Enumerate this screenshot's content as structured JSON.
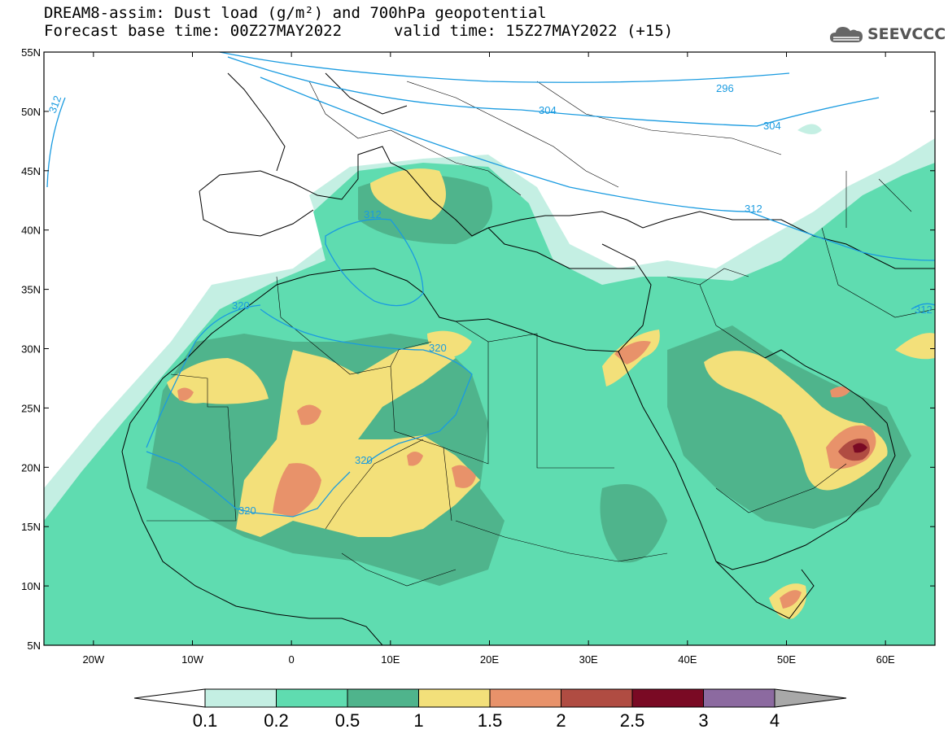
{
  "header": {
    "title_line1": "DREAM8-assim: Dust load (g/m²) and 700hPa geopotential",
    "title_line2": "Forecast base time: 00Z27MAY2022",
    "valid_time": "valid time: 15Z27MAY2022 (+15)"
  },
  "logo": {
    "text": "SEEVCCC",
    "icon": "cloud-logo-icon"
  },
  "map": {
    "lat_labels": [
      "55N",
      "50N",
      "45N",
      "40N",
      "35N",
      "30N",
      "25N",
      "20N",
      "15N",
      "10N",
      "5N"
    ],
    "lon_labels": [
      "20W",
      "10W",
      "0",
      "10E",
      "20E",
      "30E",
      "40E",
      "50E",
      "60E"
    ],
    "lat_range": [
      5,
      55
    ],
    "lon_range": [
      -25,
      65
    ],
    "colors": {
      "ocean": "#ffffff",
      "land_border": "#000000",
      "contour": "#1a9be0"
    },
    "geopotential_contours": [
      {
        "label": "296"
      },
      {
        "label": "304"
      },
      {
        "label": "304"
      },
      {
        "label": "312"
      },
      {
        "label": "312"
      },
      {
        "label": "312"
      },
      {
        "label": "312"
      },
      {
        "label": "320"
      },
      {
        "label": "320"
      },
      {
        "label": "320"
      },
      {
        "label": "320"
      }
    ]
  },
  "colorbar": {
    "labels": [
      "0.1",
      "0.2",
      "0.5",
      "1",
      "1.5",
      "2",
      "2.5",
      "3",
      "4"
    ],
    "colors": [
      "#c4efe3",
      "#5fdcb0",
      "#4fb48c",
      "#f3e07a",
      "#e8926a",
      "#b04c42",
      "#7a0a24",
      "#8c6aa0"
    ],
    "under_color": "#ffffff",
    "over_color": "#a8a8a8"
  }
}
